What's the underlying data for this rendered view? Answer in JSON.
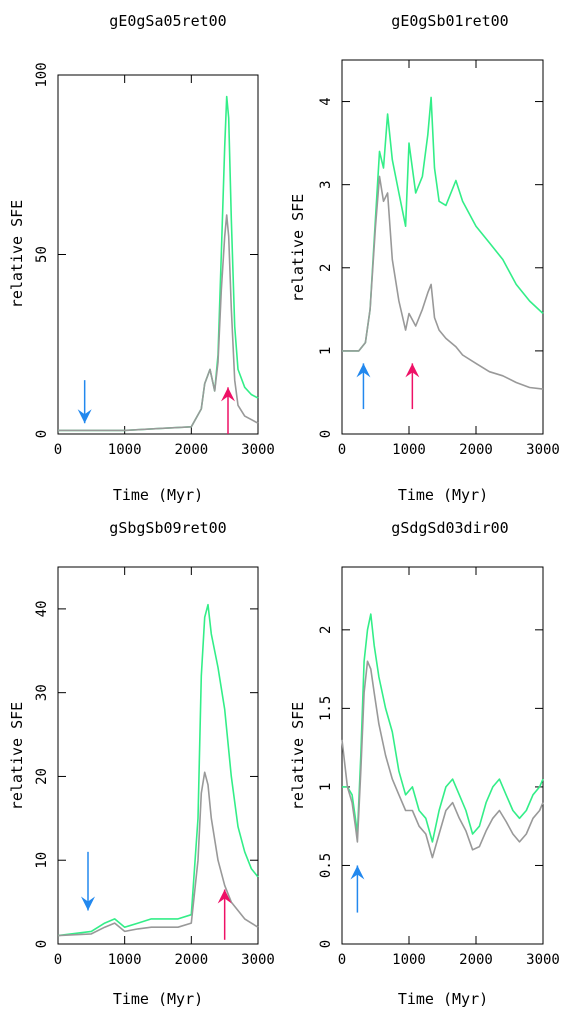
{
  "chart_data": [
    {
      "type": "line",
      "title": "gE0gSa05ret00",
      "xlabel": "Time (Myr)",
      "ylabel": "relative SFE",
      "xlim": [
        0,
        3000
      ],
      "ylim": [
        0,
        100
      ],
      "xticks": [
        "0",
        "1000",
        "2000",
        "3000"
      ],
      "yticks": [
        "0",
        "50",
        "100"
      ],
      "series": [
        {
          "color": "#33ee88",
          "x": [
            0,
            500,
            1000,
            1500,
            2000,
            2150,
            2200,
            2280,
            2350,
            2400,
            2450,
            2500,
            2530,
            2560,
            2600,
            2650,
            2700,
            2800,
            2900,
            3000
          ],
          "y": [
            1,
            1,
            1,
            1.5,
            2,
            7,
            14,
            18,
            12,
            22,
            50,
            80,
            94,
            88,
            60,
            30,
            18,
            13,
            11,
            10
          ]
        },
        {
          "color": "#999999",
          "x": [
            0,
            500,
            1000,
            1500,
            2000,
            2150,
            2200,
            2280,
            2350,
            2400,
            2450,
            2500,
            2530,
            2560,
            2600,
            2650,
            2700,
            2800,
            2900,
            3000
          ],
          "y": [
            1,
            1,
            1,
            1.5,
            2,
            7,
            14,
            18,
            12,
            20,
            40,
            55,
            61,
            55,
            35,
            15,
            8,
            5,
            4,
            3
          ]
        }
      ],
      "arrows": [
        {
          "color": "#2288ee",
          "x": 400,
          "direction": "down",
          "from": 15,
          "to": 3
        },
        {
          "color": "#ee1166",
          "x": 2550,
          "direction": "up",
          "from": 0,
          "to": 13
        }
      ]
    },
    {
      "type": "line",
      "title": "gE0gSb01ret00",
      "xlabel": "Time (Myr)",
      "ylabel": "relative SFE",
      "xlim": [
        0,
        3000
      ],
      "ylim": [
        0,
        4.5
      ],
      "xticks": [
        "0",
        "1000",
        "2000",
        "3000"
      ],
      "yticks": [
        "0",
        "1",
        "2",
        "3",
        "4"
      ],
      "series": [
        {
          "color": "#33ee88",
          "x": [
            0,
            250,
            350,
            420,
            500,
            560,
            620,
            680,
            750,
            850,
            950,
            1000,
            1100,
            1200,
            1280,
            1330,
            1380,
            1450,
            1550,
            1700,
            1800,
            2000,
            2200,
            2400,
            2600,
            2800,
            3000
          ],
          "y": [
            1,
            1,
            1.1,
            1.5,
            2.6,
            3.4,
            3.2,
            3.85,
            3.3,
            2.9,
            2.5,
            3.5,
            2.9,
            3.1,
            3.6,
            4.05,
            3.2,
            2.8,
            2.75,
            3.05,
            2.8,
            2.5,
            2.3,
            2.1,
            1.8,
            1.6,
            1.45
          ]
        },
        {
          "color": "#999999",
          "x": [
            0,
            250,
            350,
            420,
            500,
            560,
            620,
            680,
            750,
            850,
            950,
            1000,
            1100,
            1200,
            1280,
            1330,
            1380,
            1450,
            1550,
            1700,
            1800,
            2000,
            2200,
            2400,
            2600,
            2800,
            3000
          ],
          "y": [
            1,
            1,
            1.1,
            1.5,
            2.5,
            3.1,
            2.8,
            2.9,
            2.1,
            1.6,
            1.25,
            1.45,
            1.3,
            1.5,
            1.7,
            1.8,
            1.4,
            1.25,
            1.15,
            1.05,
            0.95,
            0.85,
            0.75,
            0.7,
            0.62,
            0.56,
            0.54
          ]
        }
      ],
      "arrows": [
        {
          "color": "#2288ee",
          "x": 320,
          "direction": "up",
          "from": 0.3,
          "to": 0.85
        },
        {
          "color": "#ee1166",
          "x": 1050,
          "direction": "up",
          "from": 0.3,
          "to": 0.85
        }
      ]
    },
    {
      "type": "line",
      "title": "gSbgSb09ret00",
      "xlabel": "Time (Myr)",
      "ylabel": "relative SFE",
      "xlim": [
        0,
        3000
      ],
      "ylim": [
        0,
        45
      ],
      "xticks": [
        "0",
        "1000",
        "2000",
        "3000"
      ],
      "yticks": [
        "0",
        "10",
        "20",
        "30",
        "40"
      ],
      "series": [
        {
          "color": "#33ee88",
          "x": [
            0,
            500,
            700,
            850,
            1000,
            1200,
            1400,
            1600,
            1800,
            2000,
            2100,
            2150,
            2200,
            2250,
            2300,
            2400,
            2500,
            2600,
            2700,
            2800,
            2900,
            3000
          ],
          "y": [
            1,
            1.5,
            2.5,
            3,
            2,
            2.5,
            3,
            3,
            3,
            3.5,
            15,
            32,
            39,
            40.5,
            37,
            33,
            28,
            20,
            14,
            11,
            9,
            8
          ]
        },
        {
          "color": "#999999",
          "x": [
            0,
            500,
            700,
            850,
            1000,
            1200,
            1400,
            1600,
            1800,
            2000,
            2100,
            2150,
            2200,
            2250,
            2300,
            2400,
            2500,
            2600,
            2700,
            2800,
            2900,
            3000
          ],
          "y": [
            1,
            1.2,
            2,
            2.5,
            1.5,
            1.8,
            2,
            2,
            2,
            2.5,
            10,
            18,
            20.5,
            19,
            15,
            10,
            7,
            5,
            4,
            3,
            2.5,
            2
          ]
        }
      ],
      "arrows": [
        {
          "color": "#2288ee",
          "x": 450,
          "direction": "down",
          "from": 11,
          "to": 4
        },
        {
          "color": "#ee1166",
          "x": 2500,
          "direction": "up",
          "from": 0.5,
          "to": 6.5
        }
      ]
    },
    {
      "type": "line",
      "title": "gSdgSd03dir00",
      "xlabel": "Time (Myr)",
      "ylabel": "relative SFE",
      "xlim": [
        0,
        3000
      ],
      "ylim": [
        0,
        2.4
      ],
      "xticks": [
        "0",
        "1000",
        "2000",
        "3000"
      ],
      "yticks": [
        "0",
        "0.5",
        "1",
        "1.5",
        "2"
      ],
      "series": [
        {
          "color": "#33ee88",
          "x": [
            0,
            80,
            150,
            200,
            230,
            280,
            330,
            380,
            430,
            480,
            550,
            650,
            750,
            850,
            950,
            1050,
            1150,
            1250,
            1350,
            1450,
            1550,
            1650,
            1750,
            1850,
            1950,
            2050,
            2150,
            2250,
            2350,
            2450,
            2550,
            2650,
            2750,
            2850,
            2950,
            3000
          ],
          "y": [
            1,
            1,
            0.95,
            0.8,
            0.7,
            1.2,
            1.8,
            2.0,
            2.1,
            1.9,
            1.7,
            1.5,
            1.35,
            1.1,
            0.95,
            1.0,
            0.85,
            0.8,
            0.65,
            0.85,
            1.0,
            1.05,
            0.95,
            0.85,
            0.7,
            0.75,
            0.9,
            1.0,
            1.05,
            0.95,
            0.85,
            0.8,
            0.85,
            0.95,
            1.0,
            1.05
          ]
        },
        {
          "color": "#999999",
          "x": [
            0,
            80,
            150,
            200,
            230,
            280,
            330,
            380,
            430,
            480,
            550,
            650,
            750,
            850,
            950,
            1050,
            1150,
            1250,
            1350,
            1450,
            1550,
            1650,
            1750,
            1850,
            1950,
            2050,
            2150,
            2250,
            2350,
            2450,
            2550,
            2650,
            2750,
            2850,
            2950,
            3000
          ],
          "y": [
            1.3,
            1.0,
            0.9,
            0.75,
            0.65,
            1.1,
            1.6,
            1.8,
            1.75,
            1.6,
            1.4,
            1.2,
            1.05,
            0.95,
            0.85,
            0.85,
            0.75,
            0.7,
            0.55,
            0.7,
            0.85,
            0.9,
            0.8,
            0.72,
            0.6,
            0.62,
            0.72,
            0.8,
            0.85,
            0.78,
            0.7,
            0.65,
            0.7,
            0.8,
            0.85,
            0.9
          ]
        }
      ],
      "arrows": [
        {
          "color": "#2288ee",
          "x": 230,
          "direction": "up",
          "from": 0.2,
          "to": 0.5
        }
      ]
    }
  ]
}
